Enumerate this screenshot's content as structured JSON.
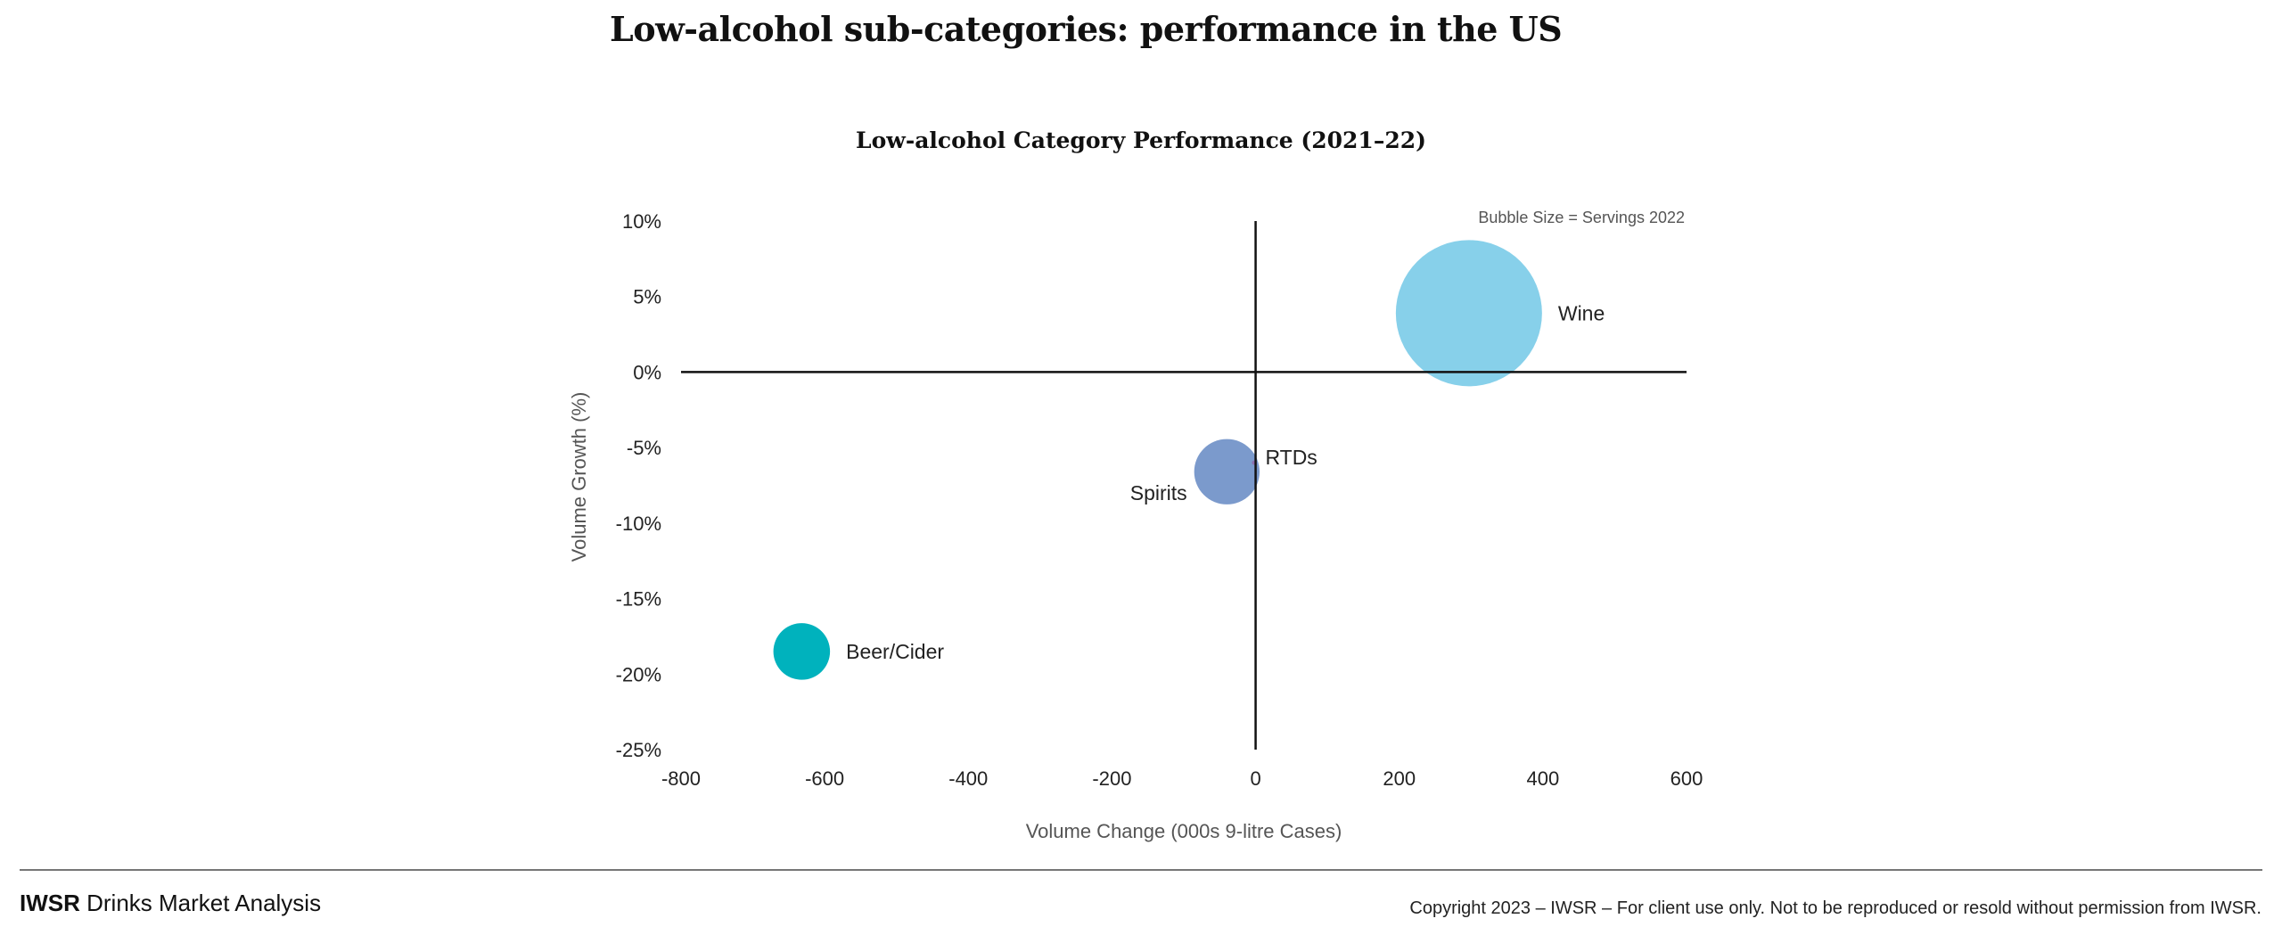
{
  "page": {
    "title": "Low-alcohol sub-categories: performance in the US"
  },
  "footer": {
    "brand_bold": "IWSR",
    "brand_rest": "Drinks Market Analysis",
    "copyright": "Copyright 2023 – IWSR – For client use only. Not to be reproduced or resold without permission from IWSR."
  },
  "chart_data": {
    "type": "scatter",
    "subtype": "bubble",
    "title": "Low-alcohol Category Performance (2021–22)",
    "xlabel": "Volume Change (000s 9-litre Cases)",
    "ylabel": "Volume Growth (%)",
    "xlim": [
      -800,
      600
    ],
    "ylim": [
      -25,
      10
    ],
    "x_ticks": [
      -800,
      -600,
      -400,
      -200,
      0,
      200,
      400,
      600
    ],
    "x_tick_labels": [
      "-800",
      "-600",
      "-400",
      "-200",
      "0",
      "200",
      "400",
      "600"
    ],
    "y_ticks": [
      10,
      5,
      0,
      -5,
      -10,
      -15,
      -20,
      -25
    ],
    "y_tick_labels": [
      "10%",
      "5%",
      "0%",
      "-5%",
      "-10%",
      "-15%",
      "-20%",
      "-25%"
    ],
    "grid": false,
    "annotation": "Bubble Size = Servings 2022",
    "annotation_position": "top-right",
    "size_note": "relative bubble size (Wine = 100)",
    "points": [
      {
        "name": "Wine",
        "x": 297,
        "y": 3.9,
        "size": 100,
        "color": "#87d0ea",
        "label_side": "right"
      },
      {
        "name": "Spirits",
        "x": -40,
        "y": -6.6,
        "size": 20,
        "color": "#7b9acc",
        "label_side": "bottom-left"
      },
      {
        "name": "RTDs",
        "x": -2,
        "y": -6.0,
        "size": 0.06,
        "color": "#8c6fb0",
        "label_side": "right"
      },
      {
        "name": "Beer/Cider",
        "x": -632,
        "y": -18.5,
        "size": 15,
        "color": "#00b2bd",
        "label_side": "right"
      }
    ]
  }
}
